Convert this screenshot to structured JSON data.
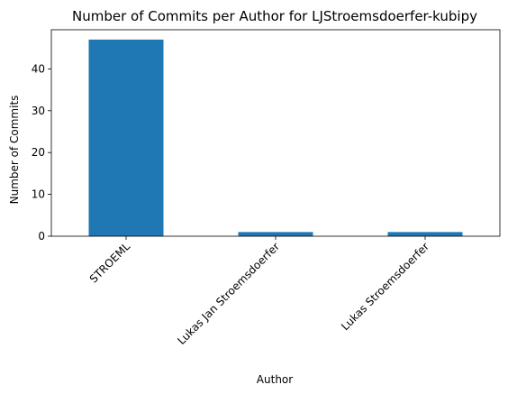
{
  "chart_data": {
    "type": "bar",
    "title": "Number of Commits per Author for LJStroemsdoerfer-kubipy",
    "xlabel": "Author",
    "ylabel": "Number of Commits",
    "categories": [
      "STROEML",
      "Lukas Jan Stroemsdoerfer",
      "Lukas Stroemsdoerfer"
    ],
    "values": [
      47,
      1,
      1
    ],
    "ylim": [
      0,
      49.35
    ],
    "yticks": [
      0,
      10,
      20,
      30,
      40
    ],
    "bar_color": "#1f77b4",
    "grid": false,
    "legend": false
  }
}
